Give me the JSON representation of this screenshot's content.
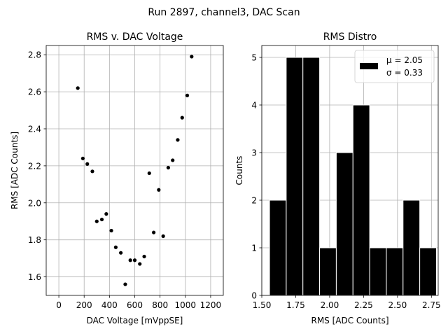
{
  "figure": {
    "suptitle": "Run 2897, channel3, DAC Scan"
  },
  "chart_data": [
    {
      "type": "scatter",
      "title": "RMS v. DAC Voltage",
      "xlabel": "DAC Voltage [mVppSE]",
      "ylabel": "RMS [ADC Counts]",
      "xlim": [
        -100,
        1300
      ],
      "ylim": [
        1.5,
        2.85
      ],
      "xticks": [
        0,
        200,
        400,
        600,
        800,
        1000,
        1200
      ],
      "yticks": [
        1.6,
        1.8,
        2.0,
        2.2,
        2.4,
        2.6,
        2.8
      ],
      "ytick_labels": [
        "1.6",
        "1.8",
        "2.0",
        "2.2",
        "2.4",
        "2.6",
        "2.8"
      ],
      "grid": true,
      "marker_color": "#000000",
      "points": [
        {
          "x": 150,
          "y": 2.62
        },
        {
          "x": 190,
          "y": 2.24
        },
        {
          "x": 225,
          "y": 2.21
        },
        {
          "x": 265,
          "y": 2.17
        },
        {
          "x": 300,
          "y": 1.9
        },
        {
          "x": 340,
          "y": 1.91
        },
        {
          "x": 375,
          "y": 1.94
        },
        {
          "x": 415,
          "y": 1.85
        },
        {
          "x": 450,
          "y": 1.76
        },
        {
          "x": 490,
          "y": 1.73
        },
        {
          "x": 525,
          "y": 1.56
        },
        {
          "x": 565,
          "y": 1.69
        },
        {
          "x": 600,
          "y": 1.69
        },
        {
          "x": 640,
          "y": 1.67
        },
        {
          "x": 675,
          "y": 1.71
        },
        {
          "x": 715,
          "y": 2.16
        },
        {
          "x": 750,
          "y": 1.84
        },
        {
          "x": 790,
          "y": 2.07
        },
        {
          "x": 825,
          "y": 1.82
        },
        {
          "x": 865,
          "y": 2.19
        },
        {
          "x": 900,
          "y": 2.23
        },
        {
          "x": 940,
          "y": 2.34
        },
        {
          "x": 975,
          "y": 2.46
        },
        {
          "x": 1015,
          "y": 2.58
        },
        {
          "x": 1050,
          "y": 2.79
        }
      ]
    },
    {
      "type": "bar",
      "title": "RMS Distro",
      "xlabel": "RMS [ADC Counts]",
      "ylabel": "Counts",
      "xlim": [
        1.5,
        2.8
      ],
      "ylim": [
        0,
        5.25
      ],
      "xticks": [
        1.5,
        1.75,
        2.0,
        2.25,
        2.5,
        2.75
      ],
      "xtick_labels": [
        "1.50",
        "1.75",
        "2.00",
        "2.25",
        "2.50",
        "2.75"
      ],
      "yticks": [
        0,
        1,
        2,
        3,
        4,
        5
      ],
      "grid": true,
      "bar_color": "#000000",
      "edge_color": "#ffffff",
      "bin_edges": [
        1.557,
        1.68,
        1.803,
        1.926,
        2.049,
        2.172,
        2.295,
        2.418,
        2.541,
        2.664,
        2.787
      ],
      "counts": [
        2,
        5,
        5,
        1,
        3,
        4,
        1,
        1,
        2,
        1
      ],
      "legend": {
        "placement": "top-right",
        "line1": "μ = 2.05",
        "line2": "σ = 0.33"
      }
    }
  ]
}
